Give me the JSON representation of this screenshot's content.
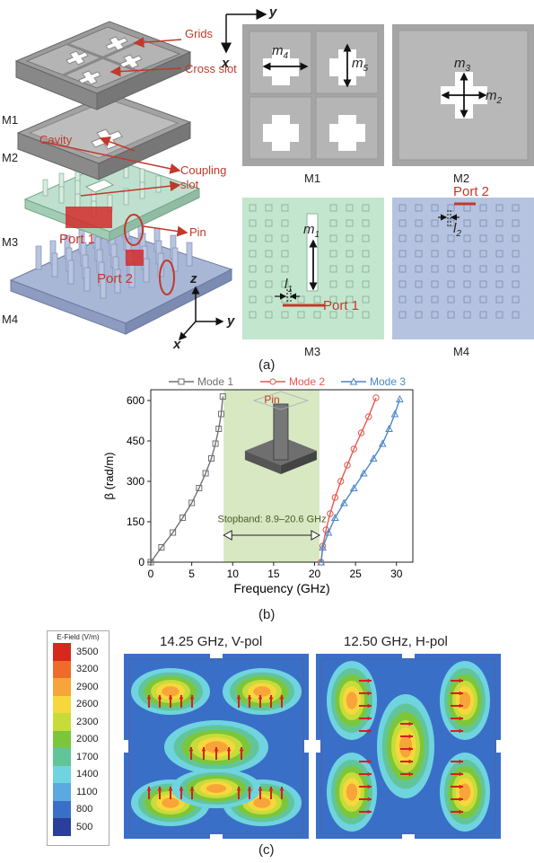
{
  "panel_a": {
    "label": "(a)",
    "exploded": {
      "layers": [
        "M1",
        "M2",
        "M3",
        "M4"
      ],
      "annotations": {
        "grids": "Grids",
        "cross_slot": "Cross slot",
        "cavity": "Cavity",
        "coupling_slot_line1": "Coupling",
        "coupling_slot_line2": "slot",
        "pin": "Pin",
        "port1": "Port 1",
        "port2": "Port 2"
      },
      "axes": {
        "z": "z",
        "x": "x",
        "y": "y"
      }
    },
    "top_views": {
      "axes": {
        "x": "x",
        "y": "y"
      },
      "m1": {
        "caption": "M1",
        "dim_a": "m",
        "dim_a_sub": "4",
        "dim_b": "m",
        "dim_b_sub": "5"
      },
      "m2": {
        "caption": "M2",
        "dim_a": "m",
        "dim_a_sub": "3",
        "dim_b": "m",
        "dim_b_sub": "2"
      },
      "m3": {
        "caption": "M3",
        "dim_a": "m",
        "dim_a_sub": "1",
        "dim_b": "l",
        "dim_b_sub": "1",
        "port": "Port 1"
      },
      "m4": {
        "caption": "M4",
        "dim_a": "l",
        "dim_a_sub": "2",
        "port": "Port 2"
      }
    }
  },
  "panel_b": {
    "label": "(b)",
    "inset_label": "Pin",
    "stopband_label": "Stopband: 8.9–20.6 GHz",
    "colors": {
      "mode1": "#707070",
      "mode2": "#e8574e",
      "mode3": "#4a86c8",
      "stopband": "#d8e8c2"
    }
  },
  "chart_data": {
    "type": "line",
    "xlabel": "Frequency (GHz)",
    "ylabel": "β (rad/m)",
    "xlim": [
      0,
      32
    ],
    "ylim": [
      0,
      640
    ],
    "xticks": [
      0,
      5,
      10,
      15,
      20,
      25,
      30
    ],
    "yticks": [
      0,
      150,
      300,
      450,
      600
    ],
    "legend_position": "top",
    "stopband": [
      8.9,
      20.6
    ],
    "series": [
      {
        "name": "Mode 1",
        "marker": "square",
        "points": [
          [
            0,
            0
          ],
          [
            1.3,
            55
          ],
          [
            2.7,
            110
          ],
          [
            3.9,
            165
          ],
          [
            5.0,
            220
          ],
          [
            5.9,
            275
          ],
          [
            6.7,
            330
          ],
          [
            7.4,
            385
          ],
          [
            7.9,
            440
          ],
          [
            8.3,
            495
          ],
          [
            8.6,
            550
          ],
          [
            8.8,
            615
          ]
        ]
      },
      {
        "name": "Mode 2",
        "marker": "circle",
        "points": [
          [
            20.8,
            0
          ],
          [
            21.0,
            60
          ],
          [
            21.4,
            120
          ],
          [
            21.9,
            180
          ],
          [
            22.5,
            240
          ],
          [
            23.2,
            300
          ],
          [
            24.0,
            360
          ],
          [
            24.8,
            420
          ],
          [
            25.7,
            480
          ],
          [
            26.6,
            540
          ],
          [
            27.5,
            610
          ]
        ]
      },
      {
        "name": "Mode 3",
        "marker": "triangle",
        "points": [
          [
            20.8,
            0
          ],
          [
            21.0,
            55
          ],
          [
            21.7,
            110
          ],
          [
            22.5,
            165
          ],
          [
            23.6,
            220
          ],
          [
            24.8,
            275
          ],
          [
            26.0,
            330
          ],
          [
            27.2,
            385
          ],
          [
            28.3,
            440
          ],
          [
            29.1,
            495
          ],
          [
            29.8,
            550
          ],
          [
            30.4,
            605
          ]
        ]
      }
    ]
  },
  "panel_c": {
    "label": "(c)",
    "colorbar": {
      "title": "E-Field (V/m)",
      "ticks": [
        "3500",
        "3200",
        "2900",
        "2600",
        "2300",
        "2000",
        "1700",
        "1400",
        "1100",
        "800",
        "500"
      ],
      "colors": [
        "#d7281e",
        "#ef6b2a",
        "#f7a43a",
        "#f7d83c",
        "#c7dc3a",
        "#7cc63c",
        "#62c59a",
        "#6fd4e0",
        "#5aa9e0",
        "#3a6fc8",
        "#2a3e9c"
      ]
    },
    "map_left": {
      "title": "14.25 GHz, V-pol"
    },
    "map_right": {
      "title": "12.50 GHz, H-pol"
    }
  }
}
